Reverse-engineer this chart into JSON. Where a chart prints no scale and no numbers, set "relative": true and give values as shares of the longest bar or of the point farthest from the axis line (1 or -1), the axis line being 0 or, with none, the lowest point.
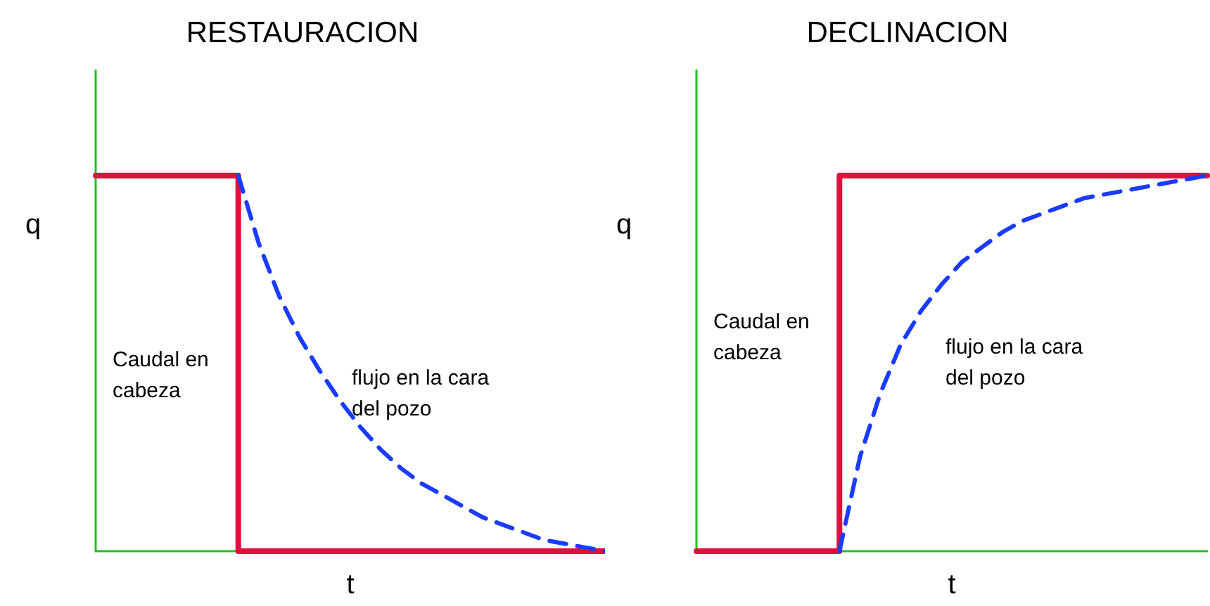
{
  "chart_data": [
    {
      "type": "line",
      "title": "RESTAURACION",
      "xlabel": "t",
      "ylabel": "q",
      "relative": true,
      "marker": "none",
      "annotations": [
        "Caudal en\ncabeza",
        "flujo en la cara\ndel pozo"
      ],
      "categories": [
        null,
        null,
        null,
        null,
        null,
        null,
        null,
        null,
        null,
        null,
        null,
        null,
        null,
        null,
        null,
        null,
        null,
        null,
        null,
        null,
        null,
        null,
        null,
        null,
        null,
        null
      ],
      "series": [
        {
          "type": "step",
          "color": "#e0103c",
          "line_style": "solid",
          "values": [
            1,
            1,
            1,
            1,
            1,
            1,
            1,
            0,
            0,
            0,
            0,
            0,
            0,
            0,
            0,
            0,
            0,
            0,
            0,
            0,
            0,
            0,
            0,
            0,
            0,
            0
          ]
        },
        {
          "type": "line",
          "color": "#1a3cff",
          "line_style": "dashed",
          "values": [
            null,
            null,
            null,
            null,
            null,
            null,
            null,
            1,
            0.82,
            0.68,
            0.57,
            0.48,
            0.4,
            0.33,
            0.27,
            0.22,
            0.18,
            0.15,
            0.12,
            0.09,
            0.07,
            0.05,
            0.03,
            0.02,
            0.01,
            0
          ]
        }
      ]
    },
    {
      "type": "line",
      "title": "DECLINACION",
      "xlabel": "t",
      "ylabel": "q",
      "relative": true,
      "marker": "none",
      "annotations": [
        "Caudal en\ncabeza",
        "flujo en la cara\ndel pozo"
      ],
      "categories": [
        null,
        null,
        null,
        null,
        null,
        null,
        null,
        null,
        null,
        null,
        null,
        null,
        null,
        null,
        null,
        null,
        null,
        null,
        null,
        null,
        null,
        null,
        null,
        null,
        null,
        null
      ],
      "series": [
        {
          "type": "step",
          "color": "#e0103c",
          "line_style": "solid",
          "values": [
            0,
            0,
            0,
            0,
            0,
            0,
            0,
            1,
            1,
            1,
            1,
            1,
            1,
            1,
            1,
            1,
            1,
            1,
            1,
            1,
            1,
            1,
            1,
            1,
            1,
            1
          ]
        },
        {
          "type": "line",
          "color": "#1a3cff",
          "line_style": "dashed",
          "values": [
            null,
            null,
            null,
            null,
            null,
            null,
            null,
            0,
            0.25,
            0.42,
            0.55,
            0.64,
            0.71,
            0.77,
            0.81,
            0.85,
            0.88,
            0.9,
            0.92,
            0.94,
            0.95,
            0.96,
            0.97,
            0.98,
            0.99,
            1
          ]
        }
      ]
    }
  ]
}
